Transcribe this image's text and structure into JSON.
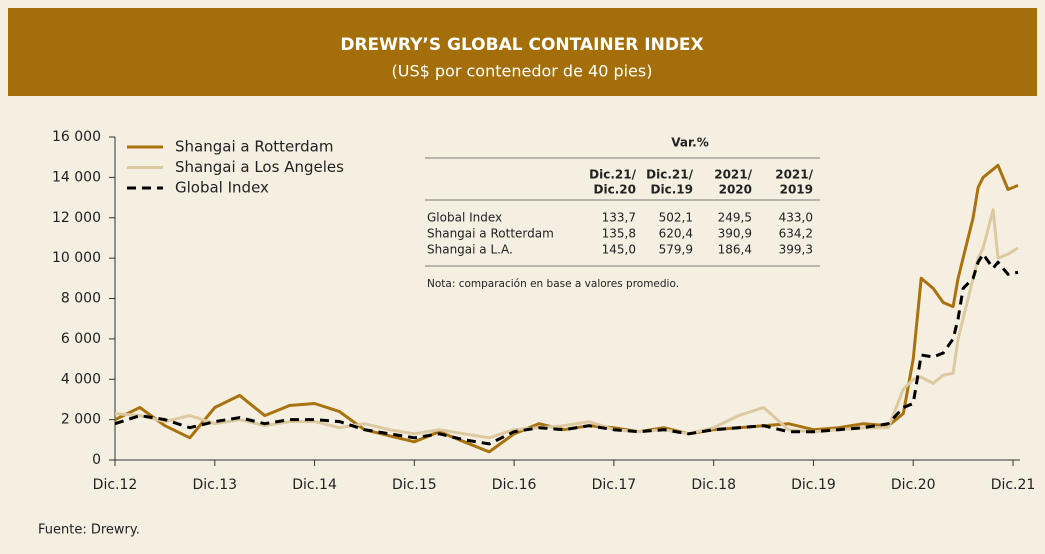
{
  "chart_data": {
    "type": "line",
    "title": "DREWRY’S GLOBAL CONTAINER INDEX",
    "subtitle": "(US$ por contenedor de 40 pies)",
    "x": [
      0,
      0.25,
      0.5,
      0.75,
      1,
      1.25,
      1.5,
      1.75,
      2,
      2.25,
      2.5,
      2.75,
      3,
      3.25,
      3.5,
      3.75,
      4,
      4.25,
      4.5,
      4.75,
      5,
      5.25,
      5.5,
      5.75,
      6,
      6.25,
      6.5,
      6.75,
      7,
      7.25,
      7.5,
      7.75,
      7.9,
      8.0,
      8.08,
      8.2,
      8.3,
      8.4,
      8.45,
      8.5,
      8.6,
      8.65,
      8.7,
      8.8,
      8.85,
      8.95,
      9.05
    ],
    "series": [
      {
        "name": "Shangai a Rotterdam",
        "color": "#a8720f",
        "dashed": false,
        "values": [
          2000,
          2600,
          1700,
          1100,
          2600,
          3200,
          2200,
          2700,
          2800,
          2400,
          1500,
          1200,
          900,
          1400,
          900,
          400,
          1300,
          1800,
          1500,
          1700,
          1600,
          1400,
          1600,
          1300,
          1500,
          1600,
          1700,
          1800,
          1500,
          1600,
          1800,
          1700,
          2300,
          5000,
          9000,
          8500,
          7800,
          7600,
          9000,
          10000,
          12000,
          13500,
          14000,
          14400,
          14600,
          13400,
          13600
        ]
      },
      {
        "name": "Shangai a Los Angeles",
        "color": "#dcc9a0",
        "dashed": false,
        "values": [
          2300,
          2200,
          1900,
          2200,
          1800,
          2000,
          1700,
          1900,
          1900,
          1600,
          1800,
          1500,
          1300,
          1500,
          1300,
          1100,
          1500,
          1600,
          1700,
          1900,
          1500,
          1400,
          1500,
          1300,
          1600,
          2200,
          2600,
          1500,
          1400,
          1500,
          1600,
          1600,
          3500,
          4000,
          4100,
          3800,
          4200,
          4300,
          6000,
          7000,
          9000,
          10000,
          10500,
          12400,
          10000,
          10200,
          10500
        ]
      },
      {
        "name": "Global Index",
        "color": "#000000",
        "dashed": true,
        "values": [
          1800,
          2200,
          2000,
          1600,
          1900,
          2100,
          1800,
          2000,
          2000,
          1900,
          1500,
          1300,
          1100,
          1300,
          1000,
          800,
          1400,
          1600,
          1500,
          1700,
          1500,
          1400,
          1500,
          1300,
          1500,
          1600,
          1700,
          1400,
          1400,
          1500,
          1600,
          1800,
          2600,
          2800,
          5200,
          5100,
          5300,
          6000,
          7000,
          8500,
          9000,
          9800,
          10200,
          9500,
          9800,
          9200,
          9300
        ]
      }
    ],
    "xlim": [
      0,
      9.07
    ],
    "xticks": [
      {
        "value": 0,
        "label": "Dic.12"
      },
      {
        "value": 1,
        "label": "Dic.13"
      },
      {
        "value": 2,
        "label": "Dic.14"
      },
      {
        "value": 3,
        "label": "Dic.15"
      },
      {
        "value": 4,
        "label": "Dic.16"
      },
      {
        "value": 5,
        "label": "Dic.17"
      },
      {
        "value": 6,
        "label": "Dic.18"
      },
      {
        "value": 7,
        "label": "Dic.19"
      },
      {
        "value": 8,
        "label": "Dic.20"
      },
      {
        "value": 9,
        "label": "Dic.21"
      }
    ],
    "ylim": [
      0,
      16000
    ],
    "yticks": [
      0,
      {
        "value": 2000,
        "label": "2 000"
      },
      {
        "value": 4000,
        "label": "4 000"
      },
      {
        "value": 6000,
        "label": "6 000"
      },
      {
        "value": 8000,
        "label": "8 000"
      },
      {
        "value": 10000,
        "label": "10 000"
      },
      {
        "value": 12000,
        "label": "12 000"
      },
      {
        "value": 14000,
        "label": "14 000"
      },
      {
        "value": 16000,
        "label": "16 000"
      }
    ],
    "legend": "top-left",
    "source": "Fuente: Drewry."
  },
  "table": {
    "title": "Var.%",
    "columns": [
      [
        "Dic.21/",
        "Dic.20"
      ],
      [
        "Dic.21/",
        "Dic.19"
      ],
      [
        "2021/",
        "2020"
      ],
      [
        "2021/",
        "2019"
      ]
    ],
    "rows": [
      [
        "Global Index",
        "133,7",
        "502,1",
        "249,5",
        "433,0"
      ],
      [
        "Shangai a Rotterdam",
        "135,8",
        "620,4",
        "390,9",
        "634,2"
      ],
      [
        "Shangai a L.A.",
        "145,0",
        "579,9",
        "186,4",
        "399,3"
      ]
    ],
    "note": "Nota: comparación en base a valores promedio."
  }
}
